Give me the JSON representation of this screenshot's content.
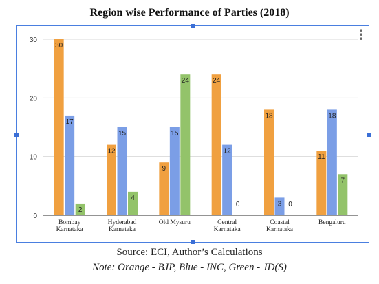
{
  "title": "Region wise Performance of Parties (2018)",
  "source": "Source: ECI, Author’s Calculations",
  "note": "Note: Orange - BJP, Blue - INC, Green - JD(S)",
  "chart_data": {
    "type": "bar",
    "title": "Region wise Performance of Parties (2018)",
    "categories": [
      [
        "Bombay",
        "Karnataka"
      ],
      [
        "Hyderabad",
        "Karnataka"
      ],
      [
        "Old Mysuru"
      ],
      [
        "Central",
        "Karnataka"
      ],
      [
        "Coastal",
        "Karnataka"
      ],
      [
        "Bengaluru"
      ]
    ],
    "series": [
      {
        "color": "#f0a040",
        "values": [
          30,
          12,
          9,
          24,
          18,
          11
        ]
      },
      {
        "color": "#7b9ee6",
        "values": [
          17,
          15,
          15,
          12,
          3,
          18
        ]
      },
      {
        "color": "#93c36a",
        "values": [
          2,
          4,
          24,
          0,
          0,
          7
        ]
      }
    ],
    "ylim": [
      0,
      30
    ],
    "yticks": [
      0,
      10,
      20,
      30
    ],
    "grid": true,
    "legend": "none",
    "data_labels": true
  }
}
